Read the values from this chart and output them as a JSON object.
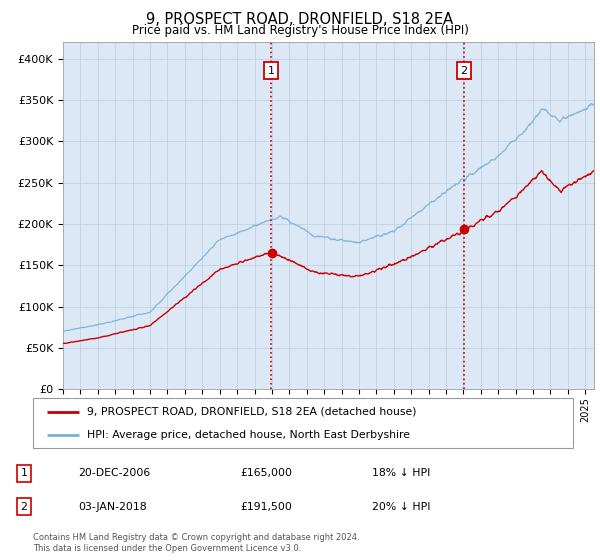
{
  "title": "9, PROSPECT ROAD, DRONFIELD, S18 2EA",
  "subtitle": "Price paid vs. HM Land Registry's House Price Index (HPI)",
  "ylabel_ticks": [
    "£0",
    "£50K",
    "£100K",
    "£150K",
    "£200K",
    "£250K",
    "£300K",
    "£350K",
    "£400K"
  ],
  "ylim": [
    0,
    420000
  ],
  "xlim_start": 1995.0,
  "xlim_end": 2025.5,
  "marker1_x": 2006.97,
  "marker1_y": 165000,
  "marker1_label": "1",
  "marker2_x": 2018.02,
  "marker2_y": 191500,
  "marker2_label": "2",
  "legend_line1": "9, PROSPECT ROAD, DRONFIELD, S18 2EA (detached house)",
  "legend_line2": "HPI: Average price, detached house, North East Derbyshire",
  "table_row1": [
    "1",
    "20-DEC-2006",
    "£165,000",
    "18% ↓ HPI"
  ],
  "table_row2": [
    "2",
    "03-JAN-2018",
    "£191,500",
    "20% ↓ HPI"
  ],
  "footnote": "Contains HM Land Registry data © Crown copyright and database right 2024.\nThis data is licensed under the Open Government Licence v3.0.",
  "hpi_color": "#7bafd4",
  "price_color": "#cc0000",
  "bg_color": "#dce8f5",
  "plot_bg": "#ffffff",
  "grid_color": "#b8cfe0",
  "marker_box_color": "#cc0000",
  "vline_color": "#cc0000",
  "dot_color": "#cc0000"
}
